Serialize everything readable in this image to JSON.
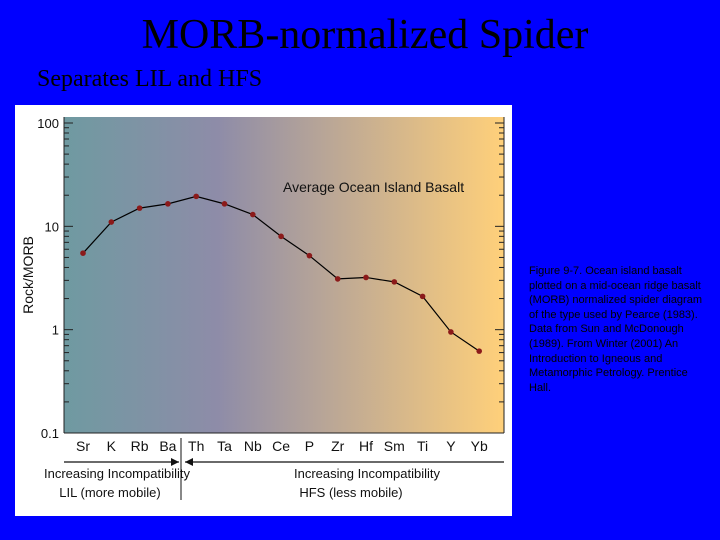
{
  "slide": {
    "title": "MORB-normalized Spider",
    "subtitle": "Separates LIL and HFS"
  },
  "caption": "Figure 9-7. Ocean island basalt plotted on a mid-ocean ridge basalt (MORB) normalized spider diagram of the type used by Pearce (1983). Data from Sun and McDonough (1989). From Winter (2001) An Introduction to Igneous and Metamorphic Petrology. Prentice Hall.",
  "colors": {
    "background": "#0000ff",
    "gradient_left": "#6f9aa1",
    "gradient_mid": "#8e8ca8",
    "gradient_right": "#ffd07a",
    "line": "#000000",
    "marker": "#8b1a1a"
  },
  "chart_data": {
    "type": "line",
    "yscale": "log",
    "ylim": [
      0.1,
      100
    ],
    "ylabel": "Rock/MORB",
    "yticks": [
      "100",
      "10",
      "1",
      "0.1"
    ],
    "categories": [
      "Sr",
      "K",
      "Rb",
      "Ba",
      "Th",
      "Ta",
      "Nb",
      "Ce",
      "P",
      "Zr",
      "Hf",
      "Sm",
      "Ti",
      "Y",
      "Yb"
    ],
    "series": [
      {
        "name": "Average Ocean Island Basalt",
        "values": [
          5.5,
          11,
          15,
          16.5,
          19.5,
          16.5,
          13,
          8,
          5.2,
          3.1,
          3.2,
          2.9,
          2.1,
          0.95,
          0.62
        ]
      }
    ],
    "annotations": {
      "lil_label_top": "Increasing Incompatibility",
      "lil_label_bottom": "LIL (more mobile)",
      "hfs_label_top": "Increasing Incompatibility",
      "hfs_label_bottom": "HFS (less mobile)"
    }
  }
}
